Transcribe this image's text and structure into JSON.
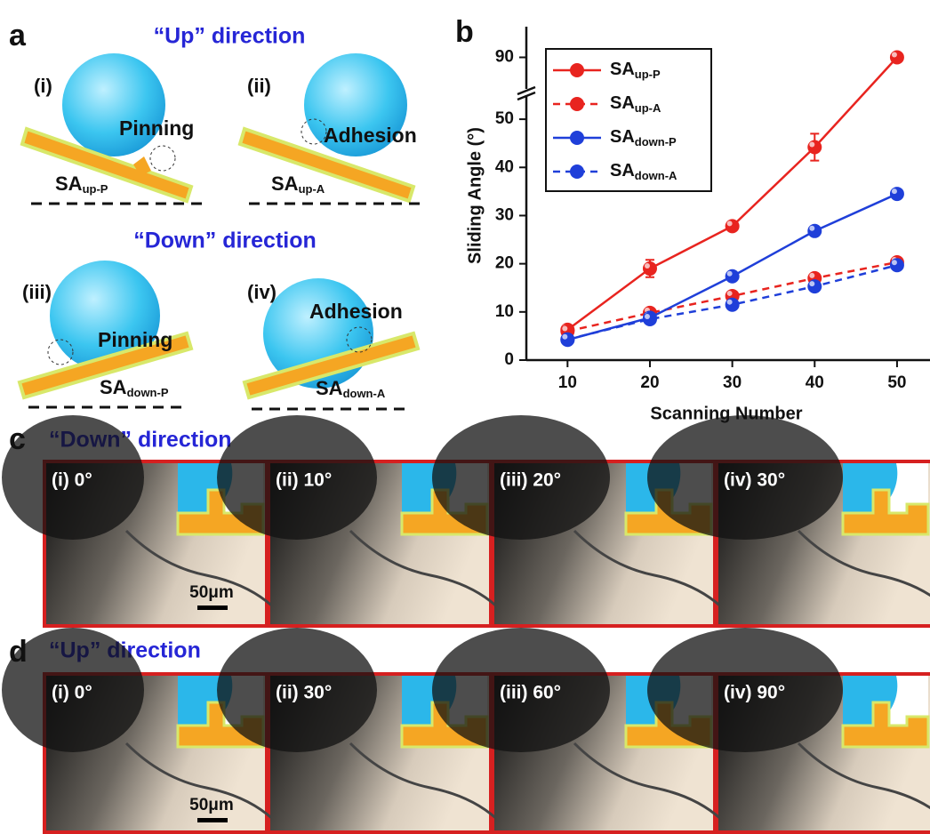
{
  "panel_a": {
    "label": "a",
    "up_heading": "“Up”  direction",
    "down_heading": "“Down”  direction",
    "items": [
      {
        "numeral": "(i)",
        "feature": "Pinning",
        "angle": "SA",
        "angle_sub": "up-P"
      },
      {
        "numeral": "(ii)",
        "feature": "Adhesion",
        "angle": "SA",
        "angle_sub": "up-A"
      },
      {
        "numeral": "(iii)",
        "feature": "Pinning",
        "angle": "SA",
        "angle_sub": "down-P"
      },
      {
        "numeral": "(iv)",
        "feature": "Adhesion",
        "angle": "SA",
        "angle_sub": "down-A"
      }
    ]
  },
  "chart_data": {
    "type": "line",
    "panel_label": "b",
    "x_label": "Scanning Number",
    "y_label": "Sliding Angle (°)",
    "x": [
      10,
      20,
      30,
      40,
      50
    ],
    "xlim": [
      5,
      54
    ],
    "xticks": [
      10,
      20,
      30,
      40,
      50
    ],
    "ylim": [
      0,
      97
    ],
    "ybreak": [
      55,
      83
    ],
    "yticks": [
      0,
      10,
      20,
      30,
      40,
      50,
      90
    ],
    "legend": "upper left",
    "series": [
      {
        "name": "SA",
        "name_sub": "up-P",
        "color": "#e8241f",
        "dashed": false,
        "values": [
          6.3,
          19,
          27.8,
          44.2,
          90
        ],
        "errors": [
          0.5,
          1.8,
          0.6,
          2.8,
          0.6
        ]
      },
      {
        "name": "SA",
        "name_sub": "up-A",
        "color": "#e8241f",
        "dashed": true,
        "values": [
          6,
          9.8,
          13.3,
          17,
          20.3
        ]
      },
      {
        "name": "SA",
        "name_sub": "down-P",
        "color": "#1f3fd9",
        "dashed": false,
        "values": [
          4.2,
          8.8,
          17.4,
          26.8,
          34.5
        ]
      },
      {
        "name": "SA",
        "name_sub": "down-A",
        "color": "#1f3fd9",
        "dashed": true,
        "values": [
          4.3,
          8.5,
          11.5,
          15.3,
          19.7
        ]
      }
    ]
  },
  "panel_c": {
    "label": "c",
    "heading": "“Down”  direction",
    "frames": [
      "(i) 0°",
      "(ii) 10°",
      "(iii) 20°",
      "(iv) 30°"
    ],
    "scale_bar": "50μm"
  },
  "panel_d": {
    "label": "d",
    "heading": "“Up”  direction",
    "frames": [
      "(i) 0°",
      "(ii) 30°",
      "(iii) 60°",
      "(iv) 90°"
    ],
    "scale_bar": "50μm"
  }
}
